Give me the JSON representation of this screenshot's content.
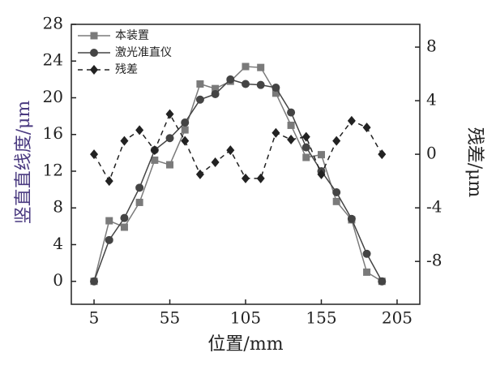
{
  "chart_data": {
    "type": "line",
    "xlabel": "位置/mm",
    "ylabel": "竖直直线度/μm",
    "y2label": "残差/μm",
    "x": [
      5,
      15,
      25,
      35,
      45,
      55,
      65,
      75,
      85,
      95,
      105,
      115,
      125,
      135,
      145,
      155,
      165,
      175,
      185,
      195
    ],
    "series": [
      {
        "name": "本装置",
        "color": "#7a7a7a",
        "marker": "square",
        "dash": false,
        "values": [
          0,
          6.6,
          5.9,
          8.6,
          13.2,
          12.7,
          16.5,
          21.5,
          21.0,
          21.8,
          23.4,
          23.3,
          20.5,
          17,
          13.5,
          13.8,
          8.7,
          6.7,
          1.0,
          0
        ]
      },
      {
        "name": "激光准直仪",
        "color": "#444444",
        "marker": "circle",
        "dash": false,
        "values": [
          0,
          4.5,
          6.9,
          10.2,
          14.3,
          15.6,
          17.3,
          19.8,
          20.4,
          22.0,
          21.5,
          21.4,
          21.1,
          18.4,
          14.6,
          12.0,
          9.7,
          6.8,
          3.0,
          0
        ]
      },
      {
        "name": "残差",
        "color": "#222222",
        "marker": "diamond",
        "dash": true,
        "axis": "y2",
        "values": [
          0,
          -2.0,
          1.0,
          1.8,
          0.3,
          3.0,
          1.0,
          -1.5,
          -0.6,
          0.3,
          -1.8,
          -1.8,
          1.6,
          1.1,
          1.3,
          -1.5,
          1.0,
          2.5,
          2.0,
          0
        ]
      }
    ],
    "xlim": [
      -10,
      220
    ],
    "xticks": [
      5,
      55,
      105,
      155,
      205
    ],
    "ylim": [
      -2.5,
      28
    ],
    "yticks": [
      0,
      4,
      8,
      12,
      16,
      20,
      24,
      28
    ],
    "y2lim": [
      -11.2,
      9.7
    ],
    "y2ticks": [
      -8,
      -4,
      0,
      4,
      8
    ]
  }
}
